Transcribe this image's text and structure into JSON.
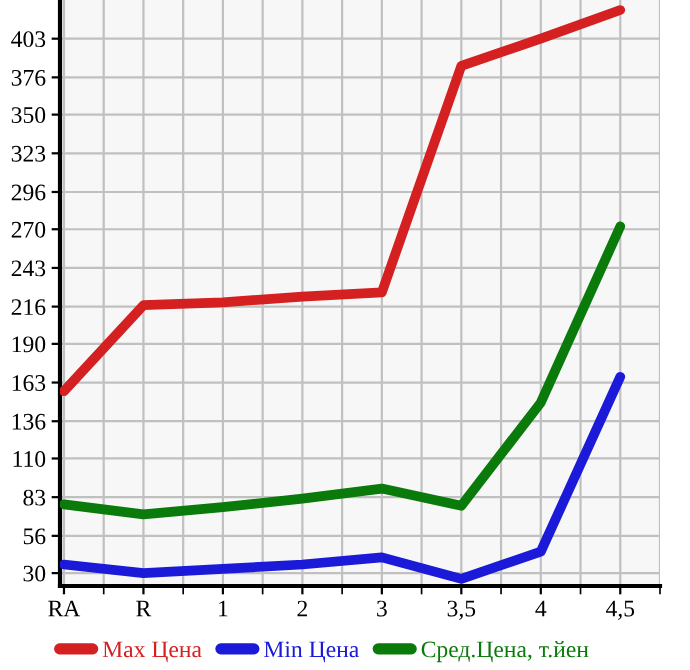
{
  "chart_data": {
    "type": "line",
    "categories": [
      "RA",
      "R",
      "1",
      "2",
      "3",
      "3,5",
      "4",
      "4,5"
    ],
    "series": [
      {
        "name": "Max Цена",
        "color": "#d42020",
        "values": [
          157,
          217,
          219,
          223,
          226,
          384,
          403,
          423
        ]
      },
      {
        "name": "Min Цена",
        "color": "#1a1ad8",
        "values": [
          36,
          30,
          33,
          36,
          41,
          26,
          45,
          167
        ]
      },
      {
        "name": "Сред.Цена, т.йен",
        "color": "#0a7a0a",
        "values": [
          78,
          71,
          76,
          82,
          89,
          77,
          149,
          272
        ]
      }
    ],
    "ylim": [
      21,
      430
    ],
    "yticks": [
      30,
      56,
      83,
      110,
      136,
      163,
      190,
      216,
      243,
      270,
      296,
      323,
      350,
      376,
      403
    ],
    "grid": true,
    "legend": "bottom",
    "marker": "none",
    "line_style": "solid"
  }
}
